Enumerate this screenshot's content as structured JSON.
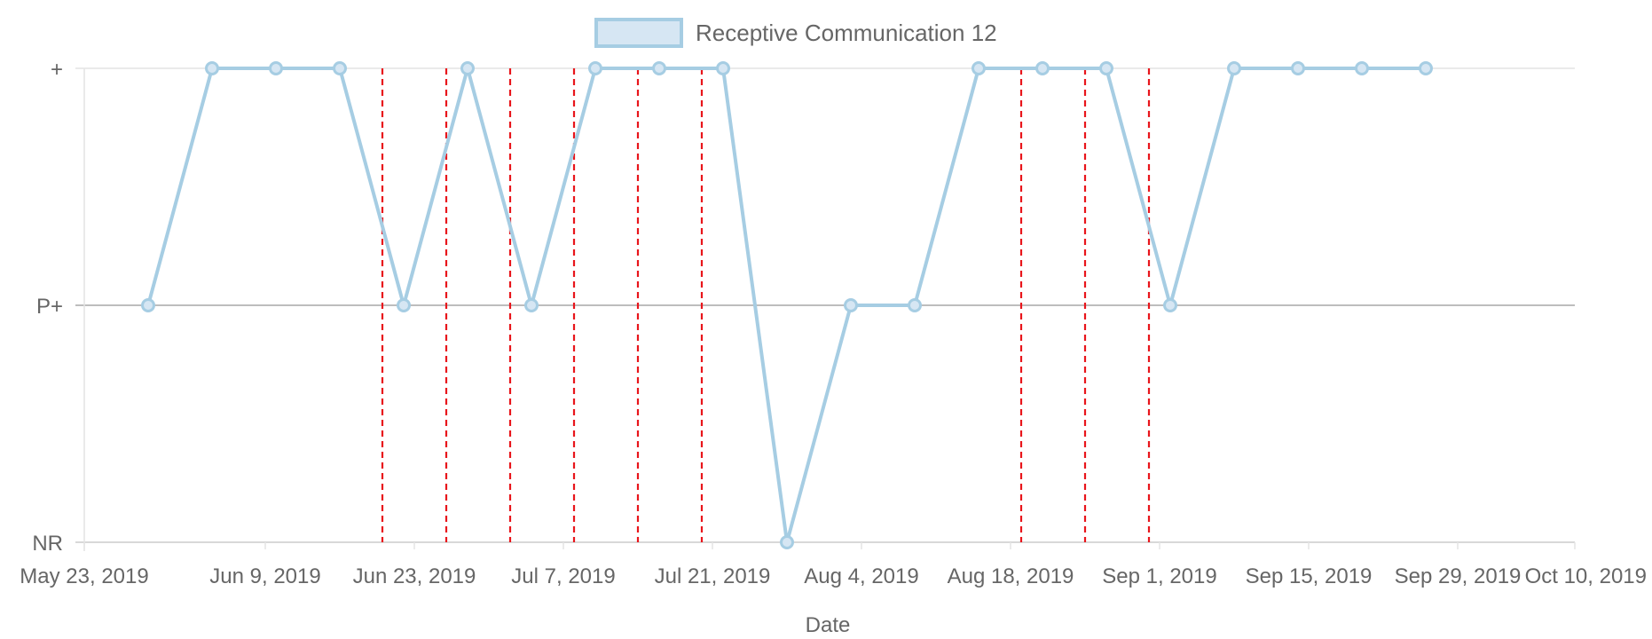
{
  "chart_data": {
    "type": "line",
    "xlabel": "Date",
    "ylabel": "",
    "x_tick_labels": [
      "May 23, 2019",
      "Jun 9, 2019",
      "Jun 23, 2019",
      "Jul 7, 2019",
      "Jul 21, 2019",
      "Aug 4, 2019",
      "Aug 18, 2019",
      "Sep 1, 2019",
      "Sep 15, 2019",
      "Sep 29, 2019",
      "Oct 10, 2019"
    ],
    "y_categories": [
      "NR",
      "P+",
      "+"
    ],
    "grid": true,
    "legend_position": "top-center",
    "series": [
      {
        "name": "Receptive Communication 12",
        "color": "#a6cde3",
        "x": [
          "May 29, 2019",
          "Jun 4, 2019",
          "Jun 10, 2019",
          "Jun 16, 2019",
          "Jun 22, 2019",
          "Jun 28, 2019",
          "Jul 4, 2019",
          "Jul 10, 2019",
          "Jul 16, 2019",
          "Jul 22, 2019",
          "Jul 28, 2019",
          "Aug 3, 2019",
          "Aug 9, 2019",
          "Aug 15, 2019",
          "Aug 21, 2019",
          "Aug 27, 2019",
          "Sep 2, 2019",
          "Sep 8, 2019",
          "Sep 14, 2019",
          "Sep 20, 2019",
          "Sep 26, 2019"
        ],
        "values": [
          "P+",
          "+",
          "+",
          "+",
          "P+",
          "+",
          "P+",
          "+",
          "+",
          "+",
          "NR",
          "P+",
          "P+",
          "+",
          "+",
          "+",
          "P+",
          "+",
          "+",
          "+",
          "+"
        ]
      }
    ],
    "phase_lines": {
      "color": "#e8151b",
      "style": "dashed",
      "x": [
        "Jun 20, 2019",
        "Jun 26, 2019",
        "Jul 2, 2019",
        "Jul 8, 2019",
        "Jul 14, 2019",
        "Jul 20, 2019",
        "Aug 19, 2019",
        "Aug 25, 2019",
        "Aug 31, 2019"
      ]
    }
  }
}
